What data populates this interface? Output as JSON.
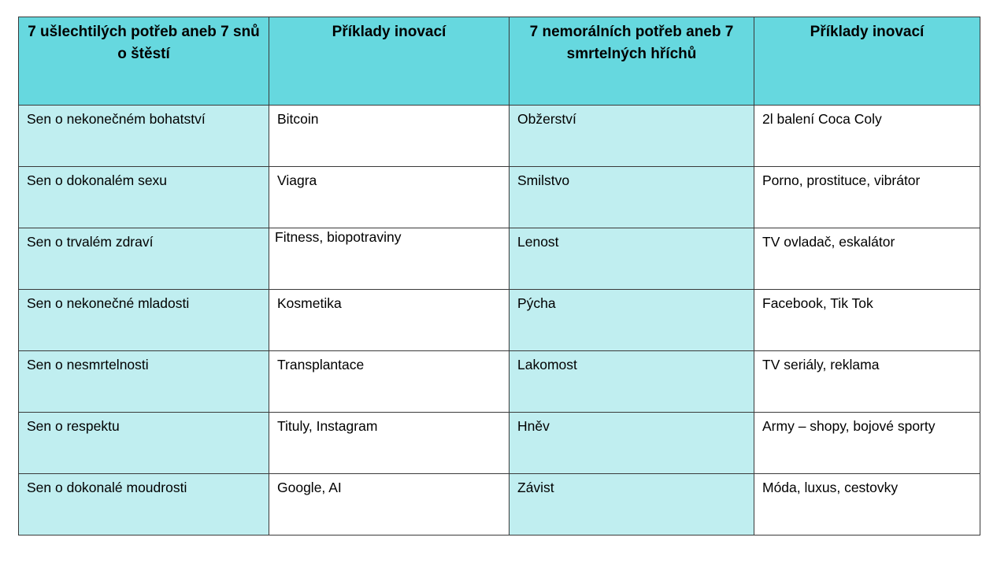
{
  "colors": {
    "header_bg": "#66d8df",
    "light_cell_bg": "#c0eef0",
    "white_cell_bg": "#ffffff",
    "border": "#3a3a3a"
  },
  "table": {
    "headers": [
      "7 ušlechtilých potřeb aneb 7 snů o štěstí",
      "Příklady inovací",
      "7 nemorálních potřeb aneb 7 smrtelných hříchů",
      "Příklady inovací"
    ],
    "rows": [
      [
        "Sen o nekonečném bohatství",
        "Bitcoin",
        "Obžerství",
        "2l balení Coca Coly"
      ],
      [
        "Sen o dokonalém sexu",
        "Viagra",
        "Smilstvo",
        "Porno, prostituce, vibrátor"
      ],
      [
        "Sen o trvalém zdraví",
        "Fitness, biopotraviny",
        "Lenost",
        "TV ovladač, eskalátor"
      ],
      [
        "Sen o nekonečné mladosti",
        "Kosmetika",
        "Pýcha",
        "Facebook, Tik Tok"
      ],
      [
        "Sen o nesmrtelnosti",
        "Transplantace",
        "Lakomost",
        "TV seriály, reklama"
      ],
      [
        "Sen o respektu",
        "Tituly, Instagram",
        "Hněv",
        "Army – shopy, bojové sporty"
      ],
      [
        "Sen o dokonalé moudrosti",
        "Google, AI",
        "Závist",
        "Móda, luxus, cestovky"
      ]
    ]
  }
}
